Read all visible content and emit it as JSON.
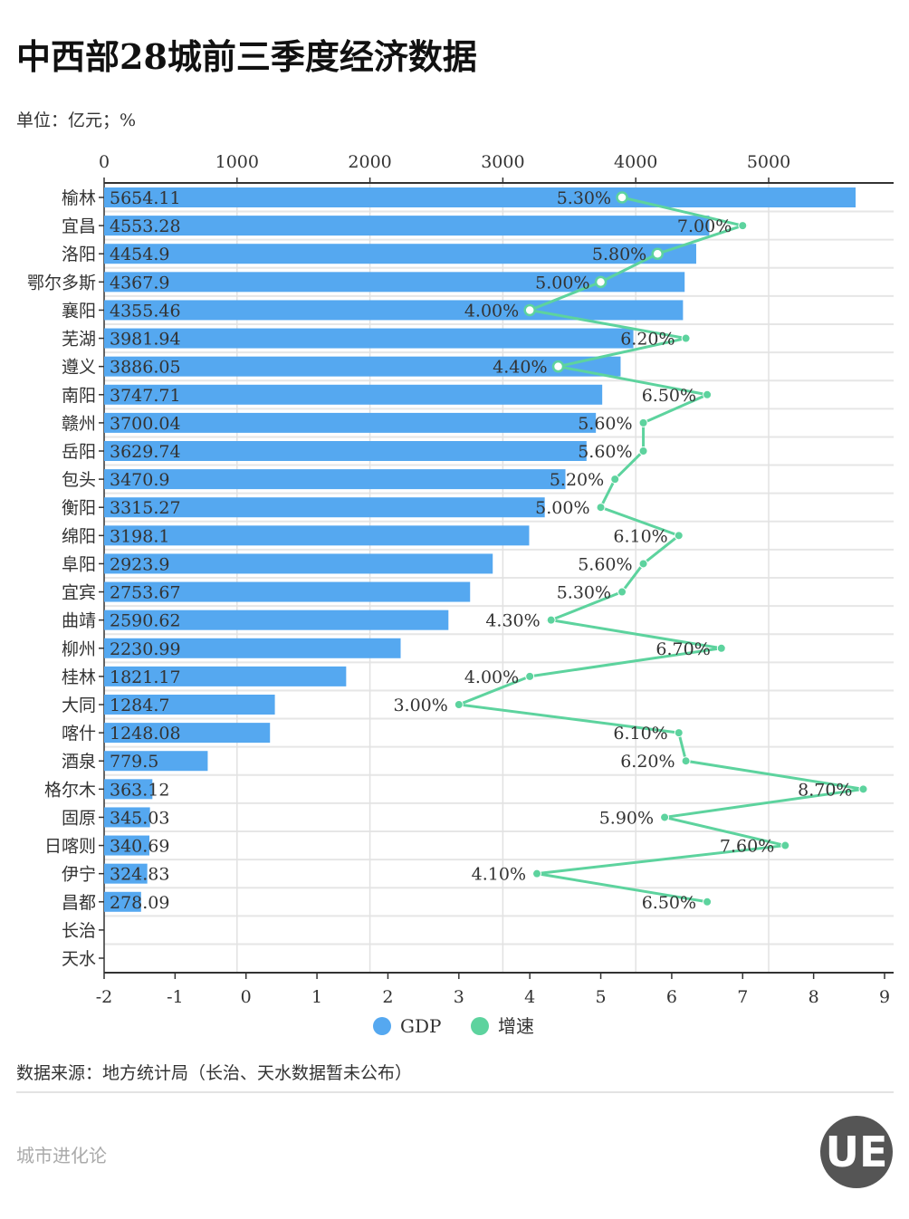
{
  "title": "中西部28城前三季度经济数据",
  "unit": "单位：亿元；%",
  "source": "数据来源：地方统计局（长治、天水数据暂未公布）",
  "brand": "城市进化论",
  "logo_text": "UE URBAN EVOLUTION",
  "chart_data": {
    "type": "bar+line",
    "orientation": "horizontal",
    "categories": [
      "榆林",
      "宜昌",
      "洛阳",
      "鄂尔多斯",
      "襄阳",
      "芜湖",
      "遵义",
      "南阳",
      "赣州",
      "岳阳",
      "包头",
      "衡阳",
      "绵阳",
      "阜阳",
      "宜宾",
      "曲靖",
      "柳州",
      "桂林",
      "大同",
      "喀什",
      "酒泉",
      "格尔木",
      "固原",
      "日喀则",
      "伊宁",
      "昌都",
      "长治",
      "天水"
    ],
    "series": [
      {
        "name": "GDP",
        "type": "bar",
        "axis": "top",
        "color": "#55a8f0",
        "values": [
          5654.11,
          4553.28,
          4454.9,
          4367.9,
          4355.46,
          3981.94,
          3886.05,
          3747.71,
          3700.04,
          3629.74,
          3470.9,
          3315.27,
          3198.1,
          2923.9,
          2753.67,
          2590.62,
          2230.99,
          1821.17,
          1284.7,
          1248.08,
          779.5,
          363.12,
          345.03,
          340.69,
          324.83,
          278.09,
          null,
          null
        ],
        "labels": [
          "5654.11",
          "4553.28",
          "4454.9",
          "4367.9",
          "4355.46",
          "3981.94",
          "3886.05",
          "3747.71",
          "3700.04",
          "3629.74",
          "3470.9",
          "3315.27",
          "3198.1",
          "2923.9",
          "2753.67",
          "2590.62",
          "2230.99",
          "1821.17",
          "1284.7",
          "1248.08",
          "779.5",
          "363.12",
          "345.03",
          "340.69",
          "324.83",
          "278.09",
          "",
          ""
        ]
      },
      {
        "name": "增速",
        "type": "line",
        "axis": "bottom",
        "color": "#5dd39e",
        "values": [
          5.3,
          7.0,
          5.8,
          5.0,
          4.0,
          6.2,
          4.4,
          6.5,
          5.6,
          5.6,
          5.2,
          5.0,
          6.1,
          5.6,
          5.3,
          4.3,
          6.7,
          4.0,
          3.0,
          6.1,
          6.2,
          8.7,
          5.9,
          7.6,
          4.1,
          6.5,
          null,
          null
        ],
        "labels": [
          "5.30%",
          "7.00%",
          "5.80%",
          "5.00%",
          "4.00%",
          "6.20%",
          "4.40%",
          "6.50%",
          "5.60%",
          "5.60%",
          "5.20%",
          "5.00%",
          "6.10%",
          "5.60%",
          "5.30%",
          "4.30%",
          "6.70%",
          "4.00%",
          "3.00%",
          "6.10%",
          "6.20%",
          "8.70%",
          "5.90%",
          "7.60%",
          "4.10%",
          "6.50%",
          "",
          ""
        ]
      }
    ],
    "top_axis": {
      "range": [
        0,
        5900
      ],
      "ticks": [
        "0",
        "1000",
        "2000",
        "3000",
        "4000",
        "5000"
      ]
    },
    "bottom_axis": {
      "range": [
        -2,
        9
      ],
      "ticks": [
        "-2",
        "-1",
        "0",
        "1",
        "2",
        "3",
        "4",
        "5",
        "6",
        "7",
        "8",
        "9"
      ]
    },
    "grid": true,
    "legend": {
      "position": "bottom",
      "items": [
        "GDP",
        "增速"
      ]
    }
  }
}
